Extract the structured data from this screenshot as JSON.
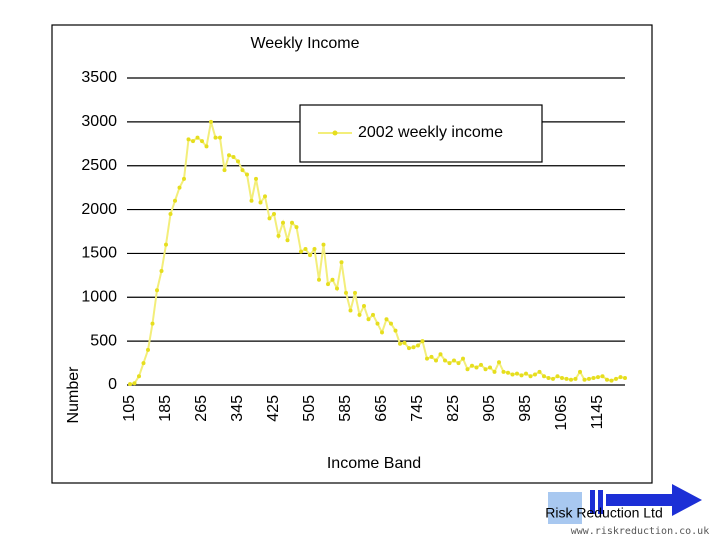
{
  "chart_data": {
    "type": "line",
    "title": "Weekly Income",
    "x_label": "Income Band",
    "y_label": "Number",
    "x": [
      105,
      115,
      125,
      135,
      145,
      155,
      165,
      175,
      185,
      195,
      205,
      215,
      225,
      235,
      245,
      255,
      265,
      275,
      285,
      295,
      305,
      315,
      325,
      335,
      345,
      355,
      365,
      375,
      385,
      395,
      405,
      415,
      425,
      435,
      445,
      455,
      465,
      475,
      485,
      495,
      505,
      515,
      525,
      535,
      545,
      555,
      565,
      575,
      585,
      595,
      605,
      615,
      625,
      635,
      645,
      655,
      665,
      675,
      685,
      695,
      705,
      715,
      725,
      735,
      745,
      755,
      765,
      775,
      785,
      795,
      805,
      815,
      825,
      835,
      845,
      855,
      865,
      875,
      885,
      895,
      905,
      915,
      925,
      935,
      945,
      955,
      965,
      975,
      985,
      995,
      1005,
      1015,
      1025,
      1035,
      1045,
      1055,
      1065,
      1075,
      1085,
      1095,
      1105,
      1115,
      1125,
      1135,
      1145,
      1155,
      1165,
      1175,
      1185,
      1195,
      1205
    ],
    "series": [
      {
        "name": "2002 weekly income",
        "color": "#f3ee7a",
        "marker_color": "#e6de1e",
        "values": [
          10,
          20,
          100,
          250,
          400,
          700,
          1080,
          1300,
          1600,
          1950,
          2100,
          2250,
          2350,
          2800,
          2780,
          2820,
          2780,
          2720,
          3000,
          2820,
          2820,
          2450,
          2620,
          2600,
          2550,
          2450,
          2400,
          2100,
          2350,
          2080,
          2150,
          1900,
          1950,
          1700,
          1850,
          1650,
          1850,
          1800,
          1520,
          1550,
          1480,
          1550,
          1200,
          1600,
          1150,
          1200,
          1100,
          1400,
          1050,
          850,
          1050,
          800,
          900,
          750,
          800,
          700,
          600,
          750,
          700,
          620,
          470,
          480,
          420,
          430,
          450,
          500,
          300,
          320,
          280,
          350,
          280,
          250,
          280,
          250,
          300,
          180,
          220,
          200,
          230,
          180,
          200,
          150,
          260,
          150,
          140,
          120,
          130,
          110,
          130,
          100,
          120,
          150,
          100,
          80,
          70,
          100,
          80,
          70,
          60,
          70,
          150,
          60,
          70,
          80,
          90,
          100,
          60,
          50,
          70,
          90,
          80
        ]
      }
    ],
    "xlim": [
      105,
      1205
    ],
    "xticks": [
      105,
      185,
      265,
      345,
      425,
      505,
      585,
      665,
      745,
      825,
      905,
      985,
      1065,
      1145
    ],
    "ylim": [
      0,
      3500
    ],
    "yticks": [
      0,
      500,
      1000,
      1500,
      2000,
      2500,
      3000,
      3500
    ],
    "grid": true,
    "legend": "top-right"
  },
  "branding": {
    "company": "Risk Reduction Ltd",
    "url": "www.riskreduction.co.uk"
  }
}
